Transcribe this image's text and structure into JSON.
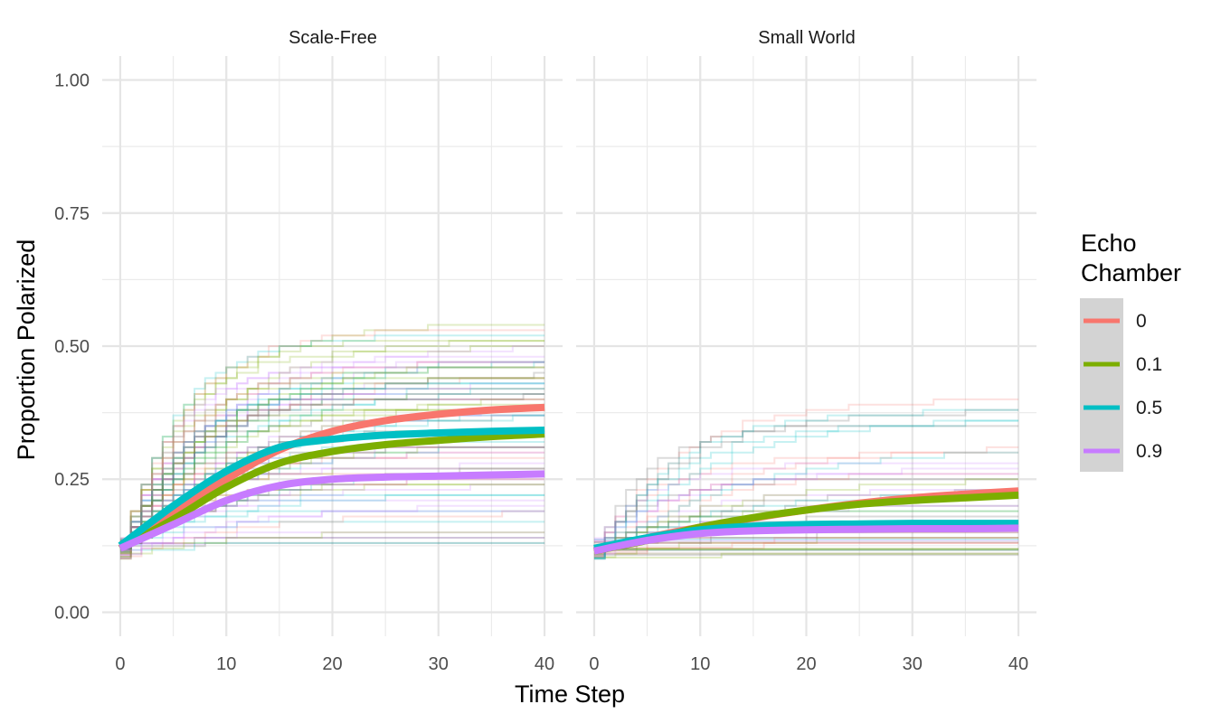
{
  "chart_data": {
    "type": "line",
    "xlabel": "Time Step",
    "ylabel": "Proportion Polarized",
    "xlim": [
      -1.7,
      41.7
    ],
    "ylim": [
      -0.045,
      1.045
    ],
    "x_ticks": [
      0,
      10,
      20,
      30,
      40
    ],
    "x_tick_labels": [
      "0",
      "10",
      "20",
      "30",
      "40"
    ],
    "y_ticks": [
      0.0,
      0.25,
      0.5,
      0.75,
      1.0
    ],
    "y_tick_labels": [
      "0.00",
      "0.25",
      "0.50",
      "0.75",
      "1.00"
    ],
    "grid": true,
    "legend": {
      "title_lines": [
        "Echo",
        "Chamber"
      ],
      "position": "right",
      "entries": [
        {
          "label": "0",
          "color": "#F8766D"
        },
        {
          "label": "0.1",
          "color": "#7CAE00"
        },
        {
          "label": "0.5",
          "color": "#00BFC4"
        },
        {
          "label": "0.9",
          "color": "#C77CFF"
        }
      ]
    },
    "panels": [
      {
        "title": "Scale-Free",
        "series": [
          {
            "name": "0",
            "color": "#F8766D",
            "x": [
              0,
              5,
              10,
              15,
              20,
              25,
              30,
              35,
              40
            ],
            "y": [
              0.12,
              0.19,
              0.25,
              0.305,
              0.34,
              0.36,
              0.372,
              0.38,
              0.385
            ]
          },
          {
            "name": "0.1",
            "color": "#7CAE00",
            "x": [
              0,
              5,
              10,
              15,
              20,
              25,
              30,
              35,
              40
            ],
            "y": [
              0.12,
              0.175,
              0.235,
              0.28,
              0.302,
              0.315,
              0.323,
              0.33,
              0.335
            ]
          },
          {
            "name": "0.5",
            "color": "#00BFC4",
            "x": [
              0,
              5,
              10,
              15,
              20,
              25,
              30,
              35,
              40
            ],
            "y": [
              0.125,
              0.2,
              0.265,
              0.31,
              0.325,
              0.333,
              0.337,
              0.34,
              0.342
            ]
          },
          {
            "name": "0.9",
            "color": "#C77CFF",
            "x": [
              0,
              5,
              10,
              15,
              20,
              25,
              30,
              35,
              40
            ],
            "y": [
              0.12,
              0.165,
              0.21,
              0.238,
              0.25,
              0.254,
              0.256,
              0.258,
              0.26
            ]
          }
        ]
      },
      {
        "title": "Small World",
        "series": [
          {
            "name": "0",
            "color": "#F8766D",
            "x": [
              0,
              5,
              10,
              15,
              20,
              25,
              30,
              35,
              40
            ],
            "y": [
              0.115,
              0.14,
              0.16,
              0.177,
              0.192,
              0.205,
              0.215,
              0.222,
              0.228
            ]
          },
          {
            "name": "0.1",
            "color": "#7CAE00",
            "x": [
              0,
              5,
              10,
              15,
              20,
              25,
              30,
              35,
              40
            ],
            "y": [
              0.115,
              0.135,
              0.16,
              0.178,
              0.192,
              0.203,
              0.21,
              0.215,
              0.22
            ]
          },
          {
            "name": "0.5",
            "color": "#00BFC4",
            "x": [
              0,
              5,
              10,
              15,
              20,
              25,
              30,
              35,
              40
            ],
            "y": [
              0.12,
              0.14,
              0.155,
              0.162,
              0.165,
              0.166,
              0.167,
              0.167,
              0.167
            ]
          },
          {
            "name": "0.9",
            "color": "#C77CFF",
            "x": [
              0,
              5,
              10,
              15,
              20,
              25,
              30,
              35,
              40
            ],
            "y": [
              0.115,
              0.135,
              0.148,
              0.153,
              0.155,
              0.156,
              0.157,
              0.157,
              0.158
            ]
          }
        ]
      }
    ]
  }
}
